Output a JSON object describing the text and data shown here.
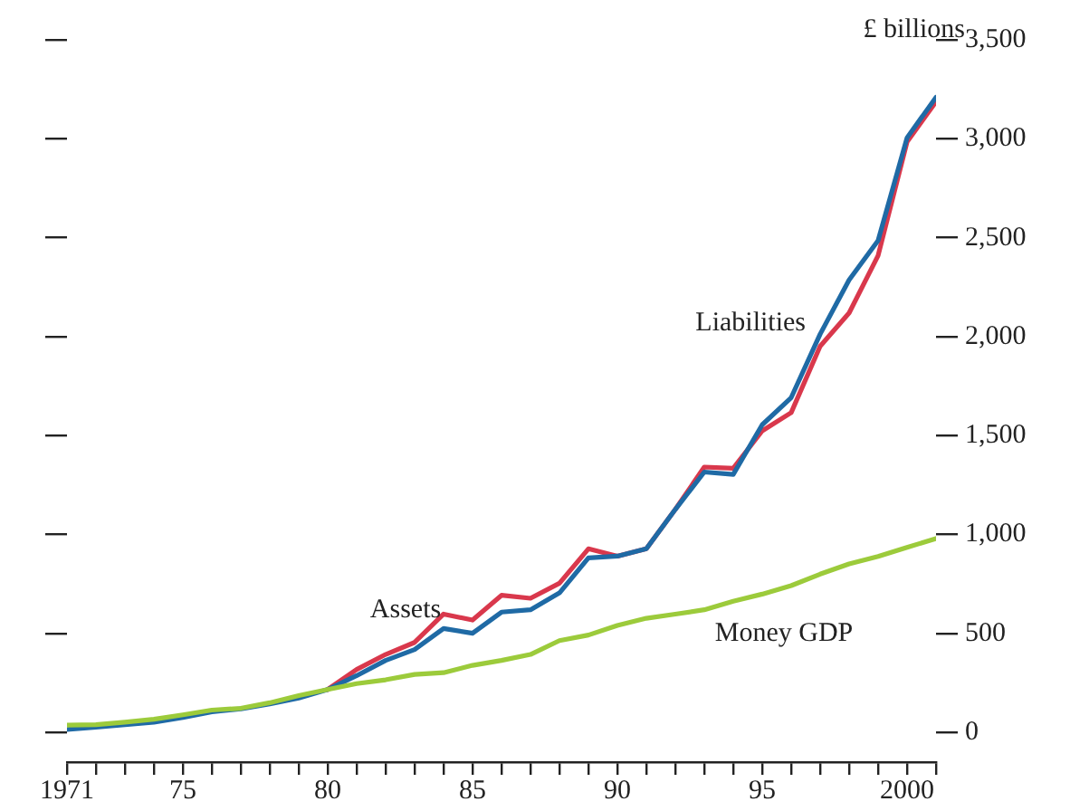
{
  "chart_data": {
    "type": "line",
    "ylabel": "£ billions",
    "x": [
      1971,
      1972,
      1973,
      1974,
      1975,
      1976,
      1977,
      1978,
      1979,
      1980,
      1981,
      1982,
      1983,
      1984,
      1985,
      1986,
      1987,
      1988,
      1989,
      1990,
      1991,
      1992,
      1993,
      1994,
      1995,
      1996,
      1997,
      1998,
      1999,
      2000,
      2001
    ],
    "series": [
      {
        "name": "Assets",
        "color": "#d9384c",
        "values": [
          null,
          null,
          null,
          null,
          null,
          null,
          null,
          null,
          null,
          217,
          318,
          394,
          455,
          598,
          568,
          693,
          678,
          754,
          928,
          891,
          928,
          1127,
          1341,
          1335,
          1524,
          1616,
          1952,
          2120,
          2410,
          2984,
          3188
        ]
      },
      {
        "name": "Liabilities",
        "color": "#1f6aa5",
        "values": [
          15,
          27,
          39,
          52,
          76,
          104,
          119,
          144,
          174,
          217,
          287,
          364,
          419,
          525,
          501,
          608,
          620,
          705,
          882,
          891,
          928,
          1127,
          1316,
          1304,
          1555,
          1692,
          2013,
          2287,
          2486,
          3005,
          3210
        ]
      },
      {
        "name": "Money GDP",
        "color": "#9ccb3b",
        "values": [
          37,
          39,
          52,
          67,
          89,
          113,
          122,
          150,
          186,
          217,
          247,
          266,
          293,
          302,
          339,
          364,
          394,
          464,
          492,
          541,
          577,
          598,
          620,
          663,
          699,
          742,
          800,
          852,
          889,
          935,
          980
        ]
      }
    ],
    "xlim": [
      1971,
      2001
    ],
    "xticks": [
      {
        "value": 1971,
        "label": "1971"
      },
      {
        "value": 1972,
        "label": null
      },
      {
        "value": 1973,
        "label": null
      },
      {
        "value": 1974,
        "label": null
      },
      {
        "value": 1975,
        "label": "75"
      },
      {
        "value": 1976,
        "label": null
      },
      {
        "value": 1977,
        "label": null
      },
      {
        "value": 1978,
        "label": null
      },
      {
        "value": 1979,
        "label": null
      },
      {
        "value": 1980,
        "label": "80"
      },
      {
        "value": 1981,
        "label": null
      },
      {
        "value": 1982,
        "label": null
      },
      {
        "value": 1983,
        "label": null
      },
      {
        "value": 1984,
        "label": null
      },
      {
        "value": 1985,
        "label": "85"
      },
      {
        "value": 1986,
        "label": null
      },
      {
        "value": 1987,
        "label": null
      },
      {
        "value": 1988,
        "label": null
      },
      {
        "value": 1989,
        "label": null
      },
      {
        "value": 1990,
        "label": "90"
      },
      {
        "value": 1991,
        "label": null
      },
      {
        "value": 1992,
        "label": null
      },
      {
        "value": 1993,
        "label": null
      },
      {
        "value": 1994,
        "label": null
      },
      {
        "value": 1995,
        "label": "95"
      },
      {
        "value": 1996,
        "label": null
      },
      {
        "value": 1997,
        "label": null
      },
      {
        "value": 1998,
        "label": null
      },
      {
        "value": 1999,
        "label": null
      },
      {
        "value": 2000,
        "label": "2000"
      },
      {
        "value": 2001,
        "label": null
      }
    ],
    "ylim": [
      -150,
      3500
    ],
    "yticks": [
      0,
      {
        "value": 500,
        "label": "500"
      },
      {
        "value": 1000,
        "label": "1,000"
      },
      {
        "value": 1500,
        "label": "1,500"
      },
      {
        "value": 2000,
        "label": "2,000"
      },
      {
        "value": 2500,
        "label": "2,500"
      },
      {
        "value": 3000,
        "label": "3,000"
      },
      {
        "value": 3500,
        "label": "3,500"
      }
    ],
    "grid": false,
    "legend": false,
    "marker": "none",
    "line_style": "solid"
  }
}
